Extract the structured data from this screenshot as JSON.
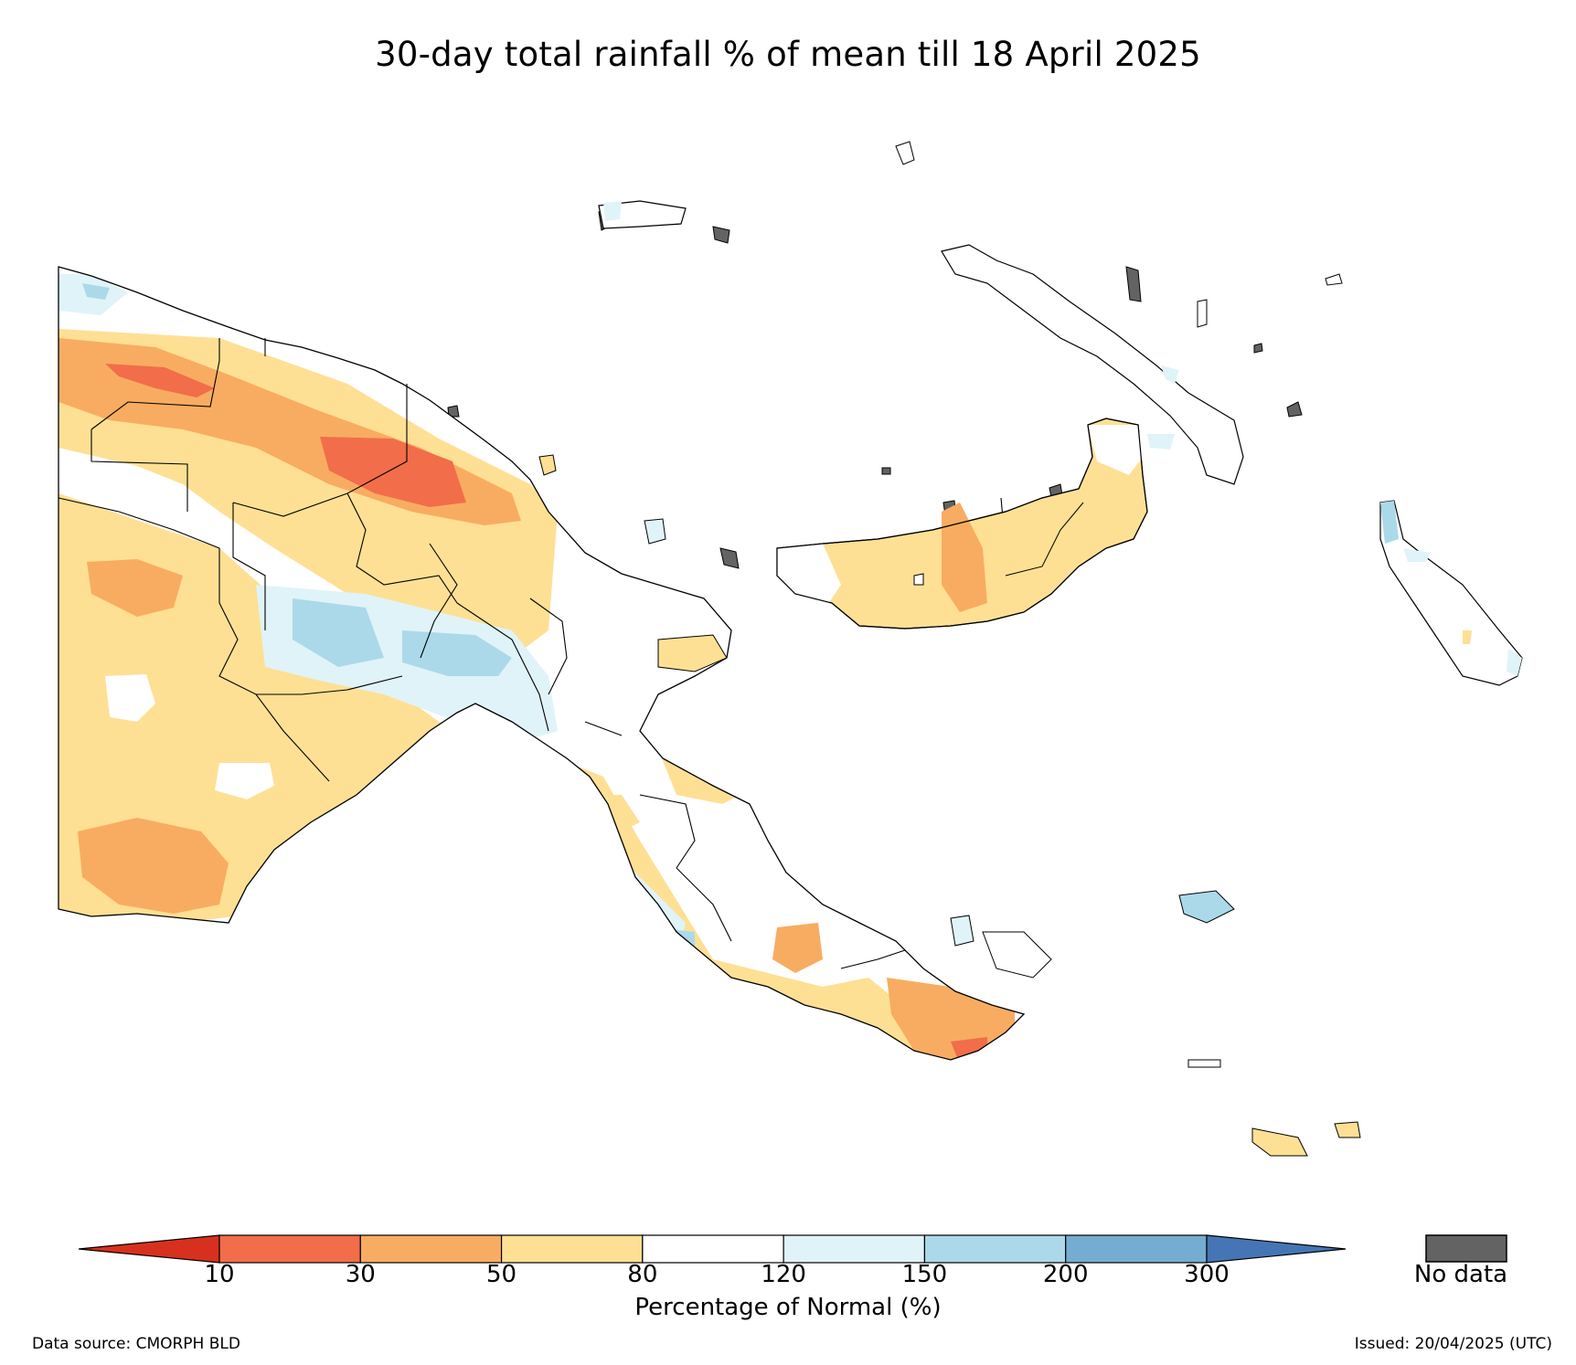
{
  "title": "30-day total rainfall % of mean till 18 April 2025",
  "legend": {
    "title": "Percentage of Normal (%)",
    "ticks": [
      "10",
      "30",
      "50",
      "80",
      "120",
      "150",
      "200",
      "300"
    ],
    "no_data_label": "No data",
    "classes": [
      {
        "range": "<10",
        "color": "#d7301f"
      },
      {
        "range": "10-30",
        "color": "#f26d4a"
      },
      {
        "range": "30-50",
        "color": "#f8ac62"
      },
      {
        "range": "50-80",
        "color": "#fde094"
      },
      {
        "range": "80-120",
        "color": "#ffffff"
      },
      {
        "range": "120-150",
        "color": "#e0f3f8"
      },
      {
        "range": "150-200",
        "color": "#abd9e9"
      },
      {
        "range": "200-300",
        "color": "#74add1"
      },
      {
        "range": ">300",
        "color": "#4575b4"
      }
    ],
    "no_data_color": "#636363"
  },
  "footer": {
    "data_source": "Data source: CMORPH BLD",
    "issued": "Issued: 20/04/2025 (UTC)"
  }
}
